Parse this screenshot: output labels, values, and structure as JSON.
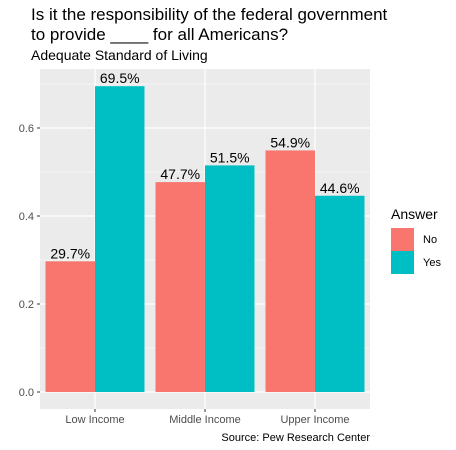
{
  "chart_data": {
    "type": "bar",
    "title_line1": "Is it the responsibility of the federal government",
    "title_line2": "to provide ____ for all Americans?",
    "subtitle": "Adequate Standard of Living",
    "caption": "Source: Pew Research Center",
    "categories": [
      "Low Income",
      "Middle Income",
      "Upper Income"
    ],
    "series": [
      {
        "name": "No",
        "color": "#F8766D",
        "values": [
          0.297,
          0.477,
          0.549
        ],
        "labels": [
          "29.7%",
          "47.7%",
          "54.9%"
        ]
      },
      {
        "name": "Yes",
        "color": "#00BFC4",
        "values": [
          0.695,
          0.515,
          0.446
        ],
        "labels": [
          "69.5%",
          "51.5%",
          "44.6%"
        ]
      }
    ],
    "ylim": [
      0,
      0.72
    ],
    "yticks": [
      0.0,
      0.2,
      0.4,
      0.6
    ],
    "ytick_labels": [
      "0.0",
      "0.2",
      "0.4",
      "0.6"
    ],
    "legend": {
      "title": "Answer",
      "position": "right"
    },
    "panel_color": "#EBEBEB",
    "grid_color": "#FFFFFF"
  }
}
